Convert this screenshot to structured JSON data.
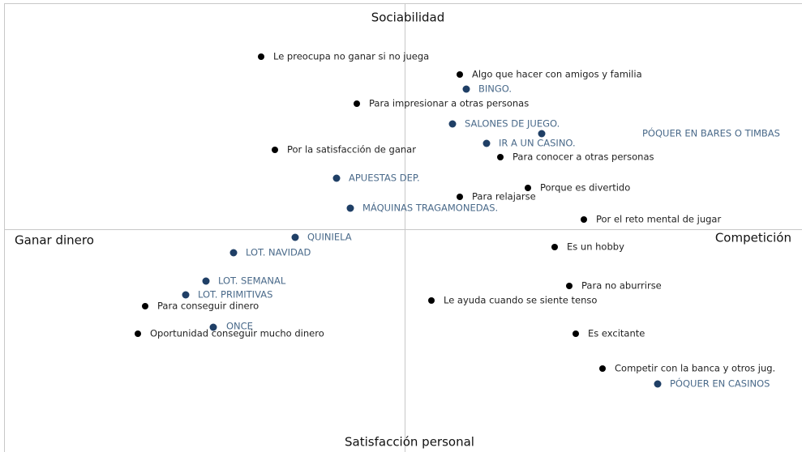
{
  "axes": {
    "top": "Sociabilidad",
    "bottom": "Satisfacción personal",
    "left": "Ganar dinero",
    "right": "Competición"
  },
  "motivations": [
    "Le preocupa no ganar si no juega",
    "Algo que hacer con amigos y familia",
    "Para impresionar a otras personas",
    "Por la satisfacción de ganar",
    "Para conocer a otras personas",
    "Porque es divertido",
    "Para relajarse",
    "Por el reto mental de jugar",
    "Es un hobby",
    "Para no aburrirse",
    "Le ayuda cuando se siente tenso",
    "Para conseguir dinero",
    "Oportunidad conseguir mucho dinero",
    "Es excitante",
    "Competir con la banca y otros jug."
  ],
  "games": [
    "BINGO.",
    "SALONES DE JUEGO.",
    "PÓQUER EN BARES O TIMBAS",
    "IR A UN CASINO.",
    "APUESTAS DEP.",
    "MÁQUINAS TRAGAMONEDAS.",
    "QUINIELA",
    "LOT. NAVIDAD",
    "LOT. SEMANAL",
    "LOT. PRIMITIVAS",
    "ONCE",
    "PÓQUER EN CASINOS"
  ]
}
